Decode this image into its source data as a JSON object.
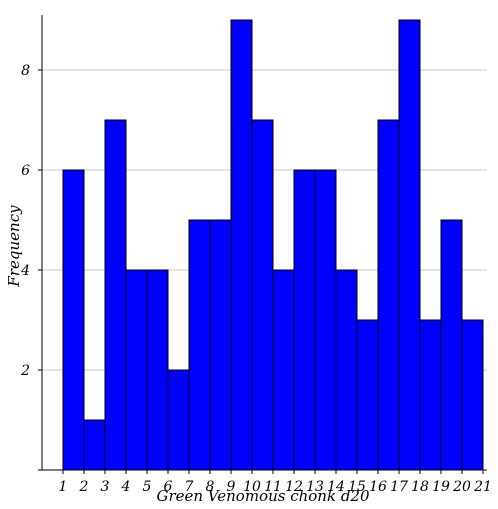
{
  "chart_data": {
    "type": "bar",
    "title": "",
    "xlabel": "Green Venomous chonk d20",
    "ylabel": "Frequency",
    "bin_edges": [
      1,
      2,
      3,
      4,
      5,
      6,
      7,
      8,
      9,
      10,
      11,
      12,
      13,
      14,
      15,
      16,
      17,
      18,
      19,
      20,
      21
    ],
    "values": [
      6,
      1,
      7,
      4,
      4,
      2,
      5,
      5,
      9,
      7,
      4,
      6,
      6,
      4,
      3,
      7,
      9,
      3,
      5,
      3
    ],
    "x_ticks": [
      "1",
      "2",
      "3",
      "4",
      "5",
      "6",
      "7",
      "8",
      "9",
      "10",
      "11",
      "12",
      "13",
      "14",
      "15",
      "16",
      "17",
      "18",
      "19",
      "20",
      "21"
    ],
    "y_ticks": [
      2,
      4,
      6,
      8
    ],
    "xlim": [
      1,
      21
    ],
    "ylim": [
      0,
      9
    ],
    "grid": "horizontal",
    "bar_color": "#0000ff",
    "bar_edge_color": "#000000",
    "grid_color": "#c8c8c8"
  }
}
